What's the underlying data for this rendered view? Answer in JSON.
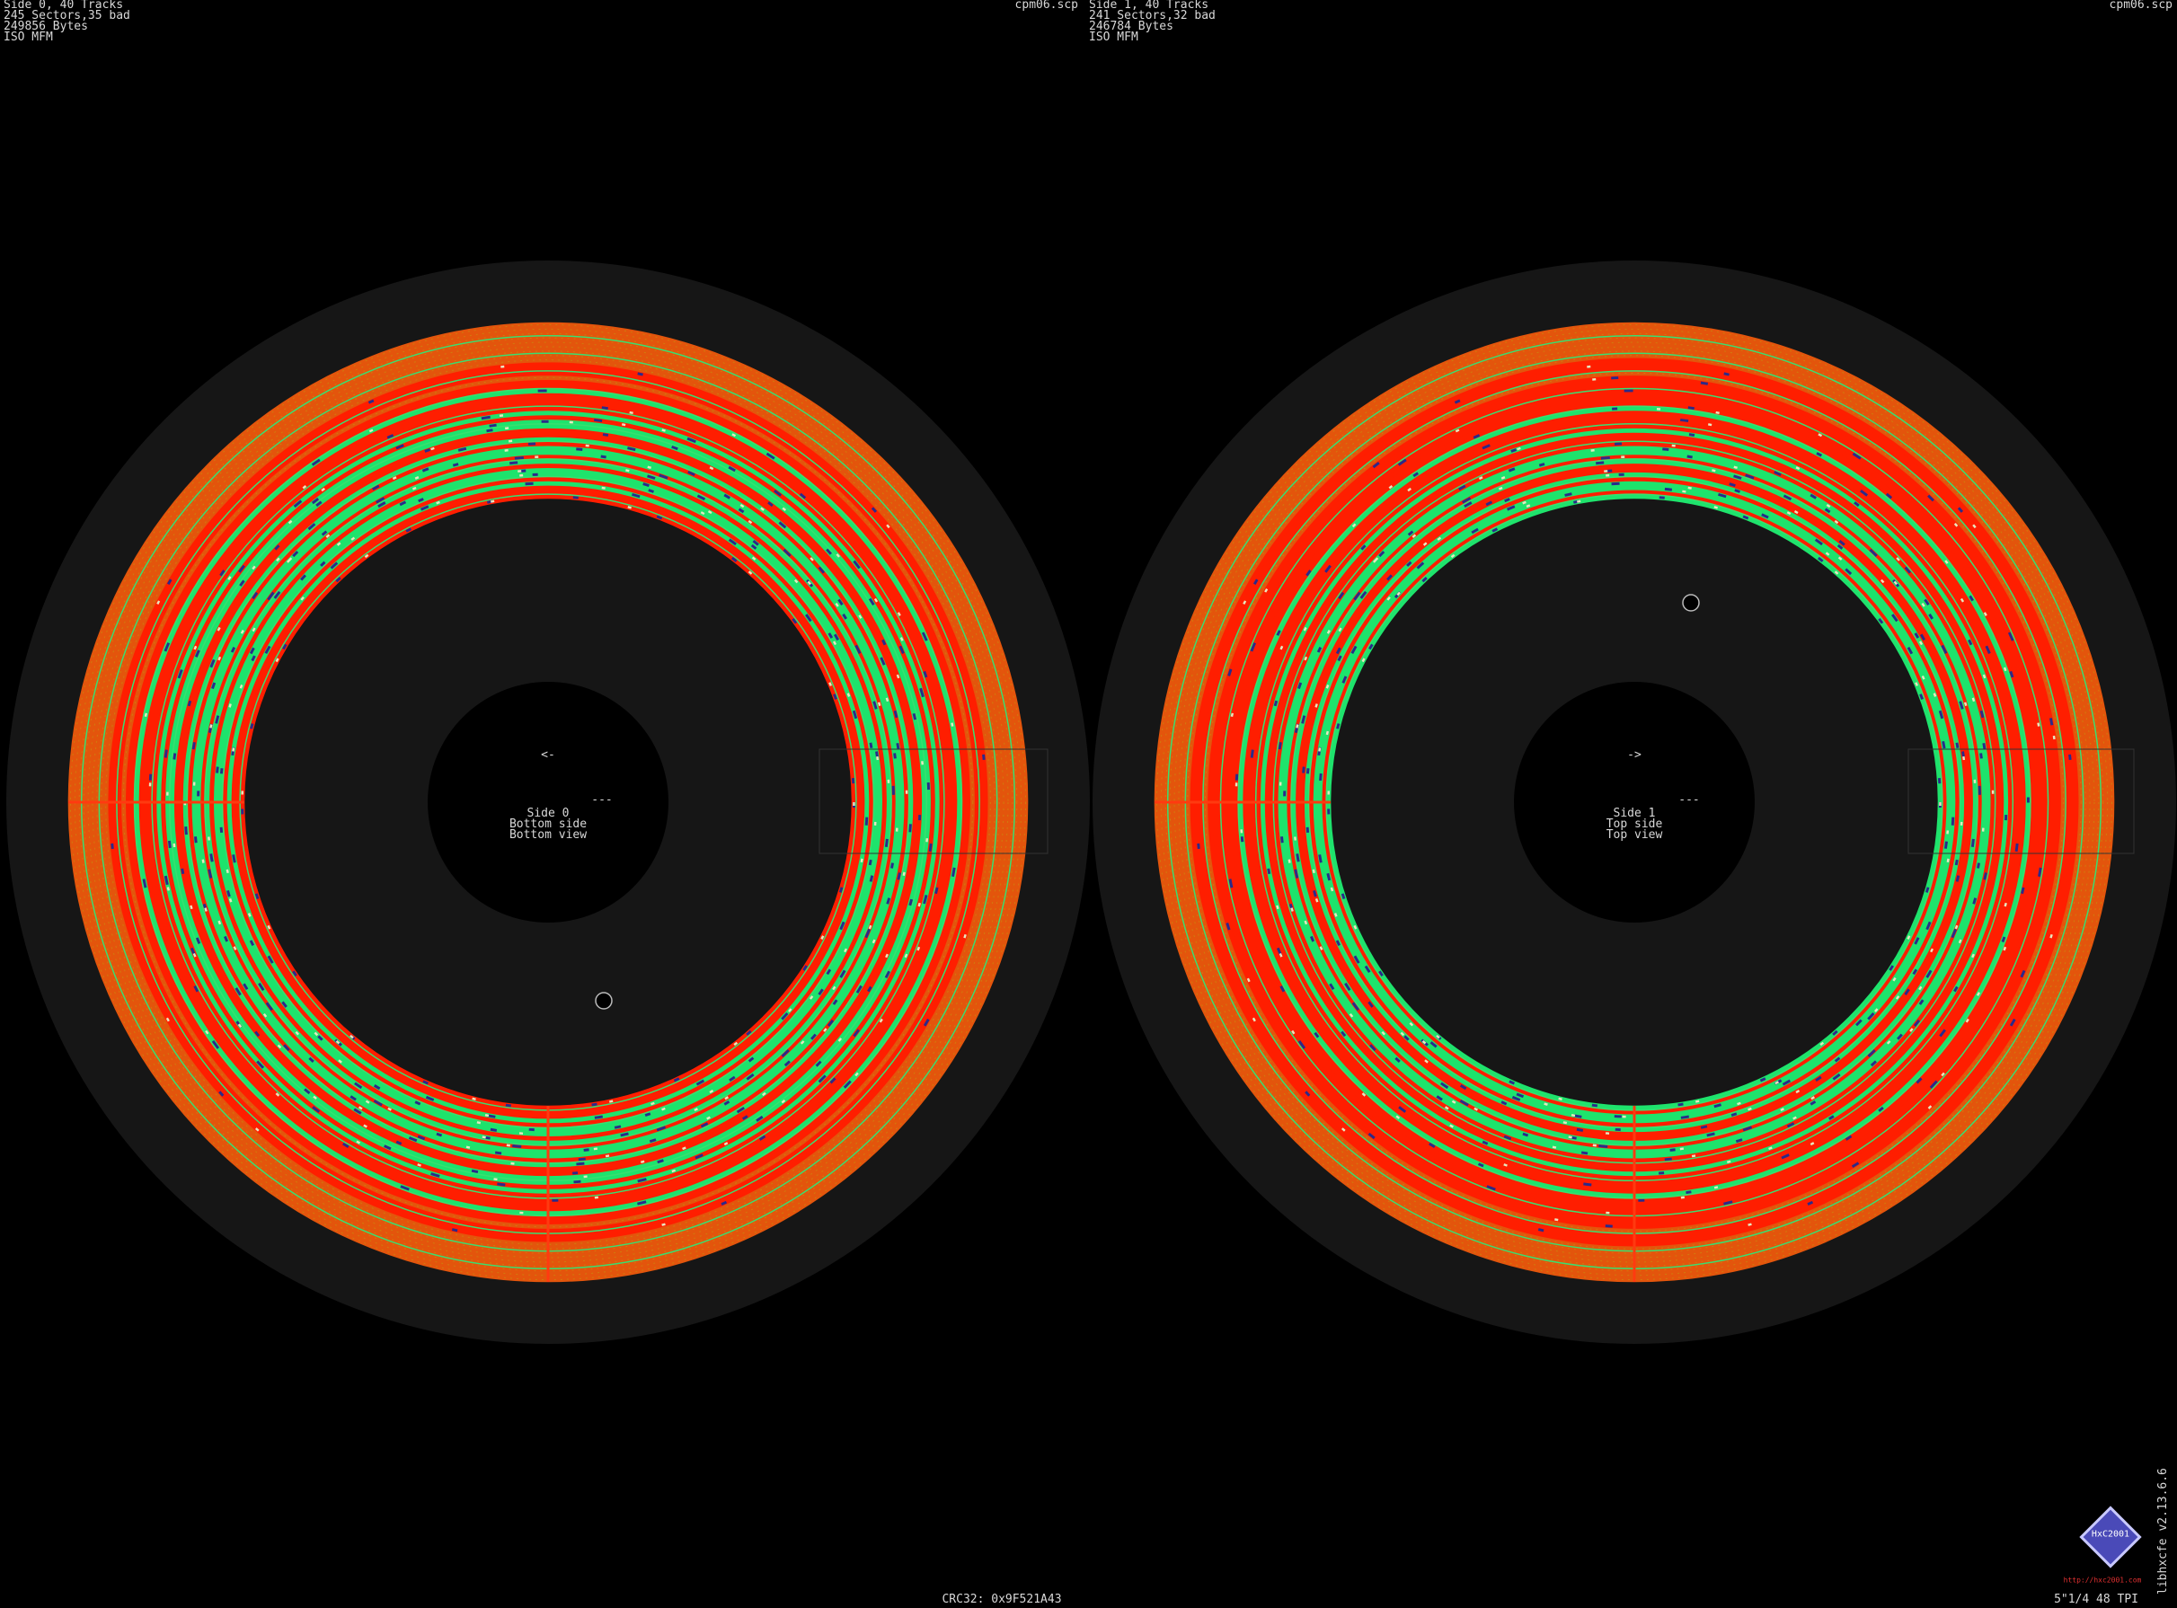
{
  "side0": {
    "info": [
      "Side 0, 40 Tracks",
      "245 Sectors,35 bad",
      "249856 Bytes",
      "ISO MFM"
    ],
    "file": "cpm06.scp",
    "arrow": "<-",
    "dash": "---",
    "labels": [
      "Side 0",
      "Bottom side",
      "Bottom view"
    ]
  },
  "side1": {
    "info": [
      "Side 1, 40 Tracks",
      "241 Sectors,32 bad",
      "246784 Bytes",
      "ISO MFM"
    ],
    "file": "cpm06.scp",
    "arrow": "->",
    "dash": "---",
    "labels": [
      "Side 1",
      "Top side",
      "Top view"
    ]
  },
  "footer": {
    "crc": "CRC32: 0x9F521A43",
    "format": "5\"1/4 48 TPI",
    "version": "libhxcfe v2.13.6.6",
    "logo": "HxC2001",
    "url": "http://hxc2001.com"
  }
}
